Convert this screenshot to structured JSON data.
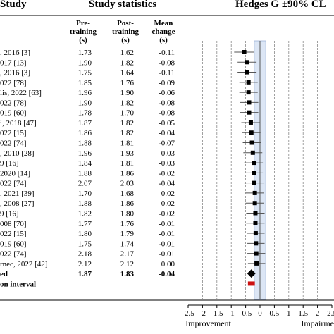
{
  "headers": {
    "study": "Study",
    "stats": "Study statistics",
    "effect": "Hedges G ±90% CL"
  },
  "columns": {
    "pre": [
      "Pre-",
      "training",
      "(s)"
    ],
    "post": [
      "Post-",
      "training",
      "(s)"
    ],
    "change": [
      "Mean",
      "change",
      "(s)"
    ]
  },
  "chart_data": {
    "type": "forest",
    "xlabel_left": "Improvement",
    "xlabel_right": "Impairme",
    "xlim": [
      -2.5,
      2.5
    ],
    "xticks": [
      "-2.5",
      "-2",
      "-1.5",
      "-1",
      "-0.5",
      "0",
      "0.5",
      "1",
      "1.5",
      "2",
      "2.5"
    ],
    "xtick_values": [
      -2.5,
      -2,
      -1.5,
      -1,
      -0.5,
      0,
      0.5,
      1,
      1.5,
      2,
      2.5
    ],
    "grid_dashed": [
      -2,
      -1.5,
      -1,
      -0.5,
      0,
      0.5,
      1,
      1.5,
      2
    ],
    "band": [
      -0.2,
      0.2
    ],
    "rows": [
      {
        "study": ", 2016 [3]",
        "pre": "1.73",
        "post": "1.62",
        "change": "-0.11",
        "g": -0.55,
        "lo": -0.9,
        "hi": -0.2
      },
      {
        "study": "017 [13]",
        "pre": "1.90",
        "post": "1.82",
        "change": "-0.08",
        "g": -0.45,
        "lo": -0.78,
        "hi": -0.12
      },
      {
        "study": ", 2016 [3]",
        "pre": "1.75",
        "post": "1.64",
        "change": "-0.11",
        "g": -0.45,
        "lo": -0.78,
        "hi": -0.12
      },
      {
        "study": "022 [78]",
        "pre": "1.85",
        "post": "1.76",
        "change": "-0.09",
        "g": -0.4,
        "lo": -0.72,
        "hi": -0.08
      },
      {
        "study": "lis, 2022 [63]",
        "pre": "1.96",
        "post": "1.90",
        "change": "-0.06",
        "g": -0.4,
        "lo": -0.72,
        "hi": -0.08
      },
      {
        "study": "022 [78]",
        "pre": "1.90",
        "post": "1.82",
        "change": "-0.08",
        "g": -0.38,
        "lo": -0.7,
        "hi": -0.06
      },
      {
        "study": "019 [60]",
        "pre": "1.78",
        "post": "1.70",
        "change": "-0.08",
        "g": -0.38,
        "lo": -0.7,
        "hi": -0.06
      },
      {
        "study": "i, 2018 [47]",
        "pre": "1.87",
        "post": "1.82",
        "change": "-0.05",
        "g": -0.32,
        "lo": -0.65,
        "hi": 0.0
      },
      {
        "study": "022 [15]",
        "pre": "1.86",
        "post": "1.82",
        "change": "-0.04",
        "g": -0.3,
        "lo": -0.62,
        "hi": 0.02
      },
      {
        "study": "022 [74]",
        "pre": "1.88",
        "post": "1.81",
        "change": "-0.07",
        "g": -0.28,
        "lo": -0.6,
        "hi": 0.04
      },
      {
        "study": ", 2010 [28]",
        "pre": "1.96",
        "post": "1.93",
        "change": "-0.03",
        "g": -0.25,
        "lo": -0.58,
        "hi": 0.08
      },
      {
        "study": "9 [16]",
        "pre": "1.84",
        "post": "1.81",
        "change": "-0.03",
        "g": -0.22,
        "lo": -0.55,
        "hi": 0.1
      },
      {
        "study": "2020 [14]",
        "pre": "1.88",
        "post": "1.86",
        "change": "-0.02",
        "g": -0.2,
        "lo": -0.5,
        "hi": 0.1
      },
      {
        "study": "022 [74]",
        "pre": "2.07",
        "post": "2.03",
        "change": "-0.04",
        "g": -0.2,
        "lo": -0.55,
        "hi": 0.15
      },
      {
        "study": ", 2021 [39]",
        "pre": "1.70",
        "post": "1.68",
        "change": "-0.02",
        "g": -0.18,
        "lo": -0.5,
        "hi": 0.14
      },
      {
        "study": ", 2008 [27]",
        "pre": "1.88",
        "post": "1.86",
        "change": "-0.02",
        "g": -0.18,
        "lo": -0.5,
        "hi": 0.14
      },
      {
        "study": "9 [16]",
        "pre": "1.82",
        "post": "1.80",
        "change": "-0.02",
        "g": -0.16,
        "lo": -0.48,
        "hi": 0.16
      },
      {
        "study": "008 [70]",
        "pre": "1.77",
        "post": "1.76",
        "change": "-0.01",
        "g": -0.16,
        "lo": -0.48,
        "hi": 0.16
      },
      {
        "study": "022 [15]",
        "pre": "1.80",
        "post": "1.79",
        "change": "-0.01",
        "g": -0.15,
        "lo": -0.46,
        "hi": 0.16
      },
      {
        "study": "019 [60]",
        "pre": "1.75",
        "post": "1.74",
        "change": "-0.01",
        "g": -0.14,
        "lo": -0.44,
        "hi": 0.16
      },
      {
        "study": "022 [74]",
        "pre": "2.18",
        "post": "2.17",
        "change": "-0.01",
        "g": -0.13,
        "lo": -0.44,
        "hi": 0.18
      },
      {
        "study": "rnec, 2022 [42]",
        "pre": "2.12",
        "post": "2.12",
        "change": "0.00",
        "g": -0.12,
        "lo": -0.42,
        "hi": 0.18
      }
    ],
    "pooled": {
      "study": "ed",
      "pre": "1.87",
      "post": "1.83",
      "change": "-0.04",
      "g": -0.3,
      "color": "#000000"
    },
    "prediction": {
      "study": "on interval",
      "lo": -0.42,
      "hi": -0.18,
      "color": "#cc1111"
    },
    "band_color": "#dce6f5",
    "band_edge_color": "#9db3d8"
  }
}
